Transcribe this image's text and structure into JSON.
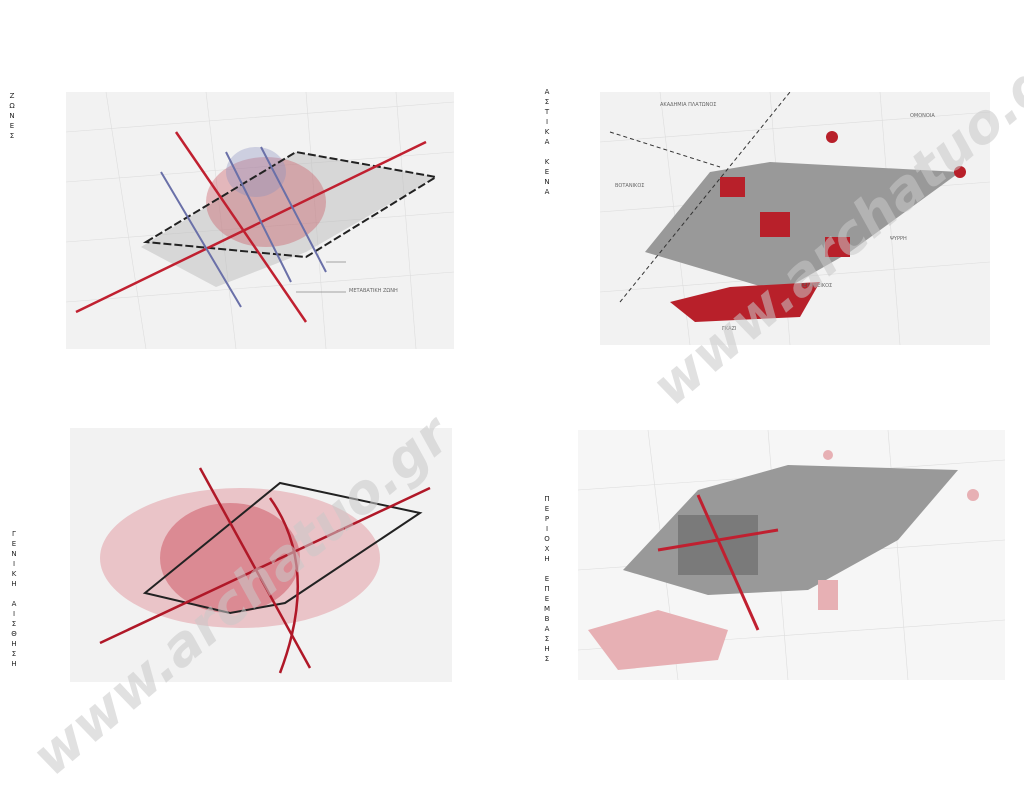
{
  "panels": [
    {
      "label": "ΖΩΝΕΣ",
      "map_labels": [
        "ΜΕΤΑΒΑΤΙΚΗ ΖΩΝΗ"
      ]
    },
    {
      "label": "ΑΣΤΙΚΑ ΚΕΝΑ",
      "map_labels": [
        "ΑΚΑΔΗΜΙΑ ΠΛΑΤΩΝΟΣ",
        "ΒΟΤΑΝΙΚΟΣ",
        "ΟΜΟΝΟΙΑ",
        "ΨΥΡΡΗ",
        "ΚΕΡΑΜΕΙΚΟΣ",
        "ΓΚΑΖΙ"
      ]
    },
    {
      "label": "ΓΕΝΙΚΗ ΑΙΣΘΗΣΗ",
      "map_labels": []
    },
    {
      "label": "ΠΕΡΙΟΧΗ ΕΠΕΜΒΑΣΗΣ",
      "map_labels": []
    }
  ],
  "watermark": "www.archatuo.gr"
}
